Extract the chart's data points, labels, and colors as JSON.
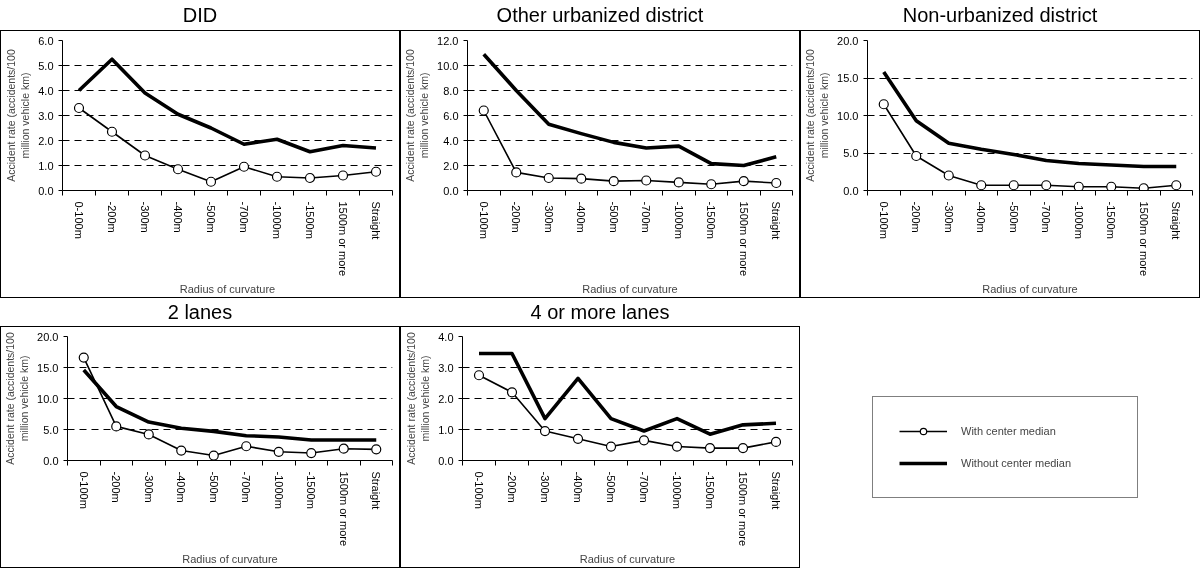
{
  "chart_data": [
    {
      "type": "line",
      "title": "DID",
      "xlabel": "Radius of curvature",
      "ylabel": "Accident rate (accidents/100 million vehicle km)",
      "categories": [
        "0-100m",
        "-200m",
        "-300m",
        "-400m",
        "-500m",
        "-700m",
        "-1000m",
        "-1500m",
        "1500m or more",
        "Straight"
      ],
      "series": [
        {
          "color": "#000000",
          "marker": "circle",
          "values": [
            3.3,
            2.35,
            1.4,
            0.85,
            0.35,
            0.95,
            0.55,
            0.5,
            0.6,
            0.75
          ]
        },
        {
          "color": "#000000",
          "marker": "none",
          "values": [
            4.0,
            5.25,
            3.9,
            3.05,
            2.5,
            1.85,
            2.05,
            1.55,
            1.8,
            1.7
          ]
        }
      ],
      "ylim": [
        0,
        6
      ],
      "yticks": [
        {
          "value": 0,
          "label": "0.0"
        },
        {
          "value": 1,
          "label": "1.0"
        },
        {
          "value": 2,
          "label": "2.0"
        },
        {
          "value": 3,
          "label": "3.0"
        },
        {
          "value": 4,
          "label": "4.0"
        },
        {
          "value": 5,
          "label": "5.0"
        },
        {
          "value": 6,
          "label": "6.0"
        }
      ],
      "grid": "y",
      "line_style": "solid"
    },
    {
      "type": "line",
      "title": "Other urbanized district",
      "xlabel": "Radius of curvature",
      "ylabel": "Accident rate (accidents/100 million vehicle km)",
      "categories": [
        "0-100m",
        "-200m",
        "-300m",
        "-400m",
        "-500m",
        "-700m",
        "-1000m",
        "-1500m",
        "1500m or more",
        "Straight"
      ],
      "series": [
        {
          "color": "#000000",
          "marker": "circle",
          "values": [
            6.4,
            1.45,
            1.0,
            0.95,
            0.75,
            0.8,
            0.65,
            0.5,
            0.75,
            0.6
          ]
        },
        {
          "color": "#000000",
          "marker": "none",
          "values": [
            10.9,
            8.0,
            5.3,
            4.55,
            3.85,
            3.4,
            3.55,
            2.15,
            2.0,
            2.7
          ]
        }
      ],
      "ylim": [
        0,
        12
      ],
      "yticks": [
        {
          "value": 0,
          "label": "0.0"
        },
        {
          "value": 2,
          "label": "2.0"
        },
        {
          "value": 4,
          "label": "4.0"
        },
        {
          "value": 6,
          "label": "6.0"
        },
        {
          "value": 8,
          "label": "8.0"
        },
        {
          "value": 10,
          "label": "10.0"
        },
        {
          "value": 12,
          "label": "12.0"
        }
      ],
      "grid": "y",
      "line_style": "solid"
    },
    {
      "type": "line",
      "title": "Non-urbanized district",
      "xlabel": "Radius of curvature",
      "ylabel": "Accident rate (accidents/100 million vehicle km)",
      "categories": [
        "0-100m",
        "-200m",
        "-300m",
        "-400m",
        "-500m",
        "-700m",
        "-1000m",
        "-1500m",
        "1500m or more",
        "Straight"
      ],
      "series": [
        {
          "color": "#000000",
          "marker": "circle",
          "values": [
            11.5,
            4.6,
            2.0,
            0.7,
            0.7,
            0.7,
            0.5,
            0.5,
            0.3,
            0.7
          ]
        },
        {
          "color": "#000000",
          "marker": "none",
          "values": [
            15.8,
            9.3,
            6.3,
            5.5,
            4.8,
            4.0,
            3.6,
            3.4,
            3.2,
            3.2
          ]
        }
      ],
      "ylim": [
        0,
        20
      ],
      "yticks": [
        {
          "value": 0,
          "label": "0.0"
        },
        {
          "value": 5,
          "label": "5.0"
        },
        {
          "value": 10,
          "label": "10.0"
        },
        {
          "value": 15,
          "label": "15.0"
        },
        {
          "value": 20,
          "label": "20.0"
        }
      ],
      "grid": "y",
      "line_style": "solid"
    },
    {
      "type": "line",
      "title": "2 lanes",
      "xlabel": "Radius of curvature",
      "ylabel": "Accident rate (accidents/100 million vehicle km)",
      "categories": [
        "0-100m",
        "-200m",
        "-300m",
        "-400m",
        "-500m",
        "-700m",
        "-1000m",
        "-1500m",
        "1500m or more",
        "Straight"
      ],
      "series": [
        {
          "color": "#000000",
          "marker": "circle",
          "values": [
            16.6,
            5.5,
            4.2,
            1.6,
            0.8,
            2.3,
            1.4,
            1.2,
            1.9,
            1.8
          ]
        },
        {
          "color": "#000000",
          "marker": "none",
          "values": [
            14.6,
            8.7,
            6.2,
            5.2,
            4.7,
            4.0,
            3.8,
            3.3,
            3.3,
            3.3
          ]
        }
      ],
      "ylim": [
        0,
        20
      ],
      "yticks": [
        {
          "value": 0,
          "label": "0.0"
        },
        {
          "value": 5,
          "label": "5.0"
        },
        {
          "value": 10,
          "label": "10.0"
        },
        {
          "value": 15,
          "label": "15.0"
        },
        {
          "value": 20,
          "label": "20.0"
        }
      ],
      "grid": "y",
      "line_style": "solid"
    },
    {
      "type": "line",
      "title": "4 or more lanes",
      "xlabel": "Radius of curvature",
      "ylabel": "Accident rate (accidents/100 million vehicle km)",
      "categories": [
        "0-100m",
        "-200m",
        "-300m",
        "-400m",
        "-500m",
        "-700m",
        "-1000m",
        "-1500m",
        "1500m or more",
        "Straight"
      ],
      "series": [
        {
          "name": "With center median",
          "color": "#000000",
          "marker": "circle",
          "values": [
            2.75,
            2.2,
            0.95,
            0.7,
            0.45,
            0.65,
            0.45,
            0.4,
            0.4,
            0.6
          ]
        },
        {
          "name": "Without center median",
          "color": "#000000",
          "marker": "none",
          "values": [
            3.45,
            3.45,
            1.35,
            2.65,
            1.35,
            0.95,
            1.35,
            0.85,
            1.15,
            1.2
          ]
        }
      ],
      "ylim": [
        0,
        4
      ],
      "yticks": [
        {
          "value": 0,
          "label": "0.0"
        },
        {
          "value": 1,
          "label": "1.0"
        },
        {
          "value": 2,
          "label": "2.0"
        },
        {
          "value": 3,
          "label": "3.0"
        },
        {
          "value": 4,
          "label": "4.0"
        }
      ],
      "grid": "y",
      "line_style": "solid",
      "legend": "right"
    }
  ]
}
